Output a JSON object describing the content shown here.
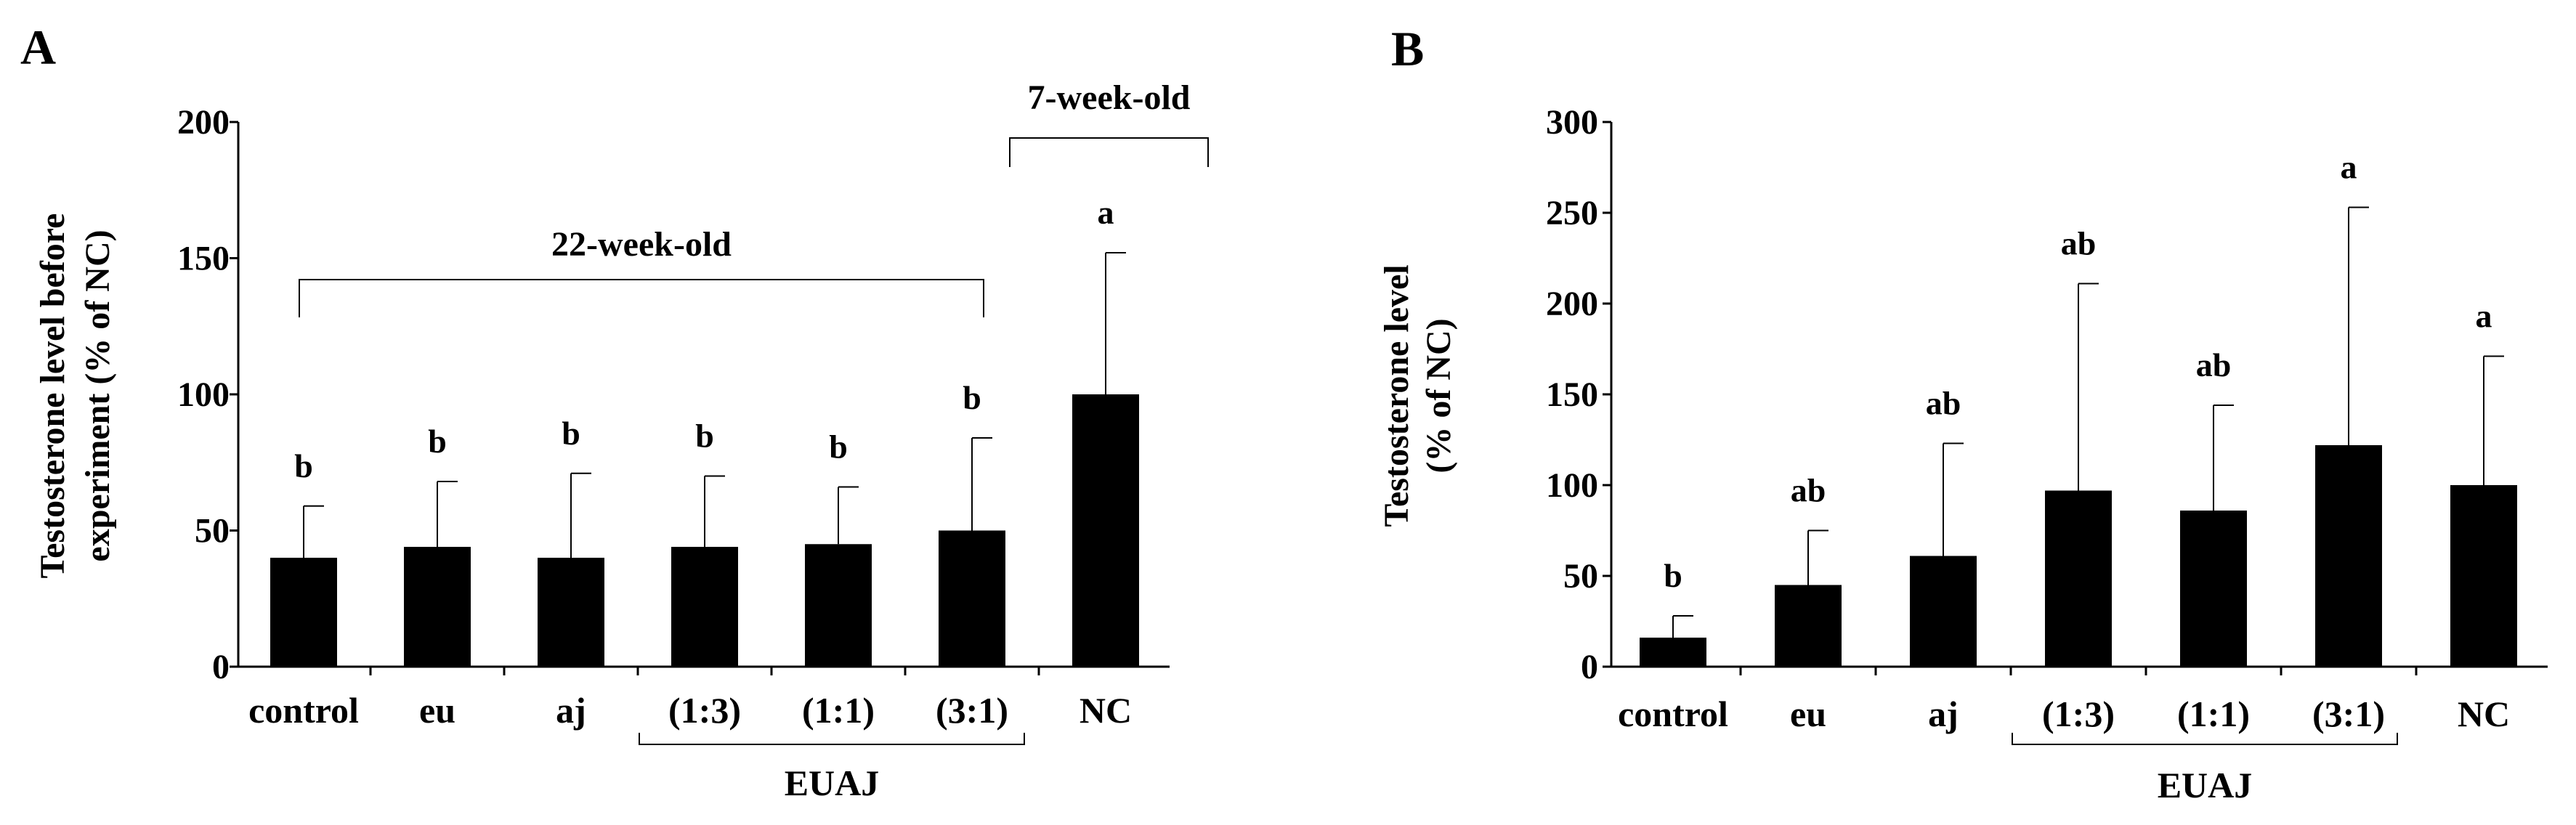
{
  "chart_data": [
    {
      "panel_label": "A",
      "type": "bar",
      "categories": [
        "control",
        "eu",
        "aj",
        "(1:3)",
        "(1:1)",
        "(3:1)",
        "NC"
      ],
      "values": [
        40,
        44,
        40,
        44,
        45,
        50,
        100
      ],
      "errors": [
        19,
        24,
        31,
        26,
        21,
        34,
        52
      ],
      "letters": [
        "b",
        "b",
        "b",
        "b",
        "b",
        "b",
        "a"
      ],
      "ylabel_lines": [
        "Testosterone level before",
        "experiment (% of NC)"
      ],
      "xlabel": "",
      "ylim": [
        0,
        200
      ],
      "yticks": [
        "0",
        "50",
        "100",
        "150",
        "200"
      ],
      "group_label": "EUAJ",
      "brackets_top": [
        {
          "label": "22-week-old",
          "from_category": 0,
          "to_category": 5
        },
        {
          "label": "7-week-old",
          "from_category": 6,
          "to_category": 6
        }
      ],
      "bar_color": "#000000"
    },
    {
      "panel_label": "B",
      "type": "bar",
      "categories": [
        "control",
        "eu",
        "aj",
        "(1:3)",
        "(1:1)",
        "(3:1)",
        "NC"
      ],
      "values": [
        16,
        45,
        61,
        97,
        86,
        122,
        100
      ],
      "errors": [
        12,
        30,
        62,
        114,
        58,
        131,
        71
      ],
      "letters": [
        "b",
        "ab",
        "ab",
        "ab",
        "ab",
        "a",
        "a"
      ],
      "ylabel_lines": [
        "Testosterone level",
        "(% of NC)"
      ],
      "xlabel": "",
      "ylim": [
        0,
        300
      ],
      "yticks": [
        "0",
        "50",
        "100",
        "150",
        "200",
        "250",
        "300"
      ],
      "group_label": "EUAJ",
      "brackets_top": [],
      "bar_color": "#000000"
    }
  ]
}
